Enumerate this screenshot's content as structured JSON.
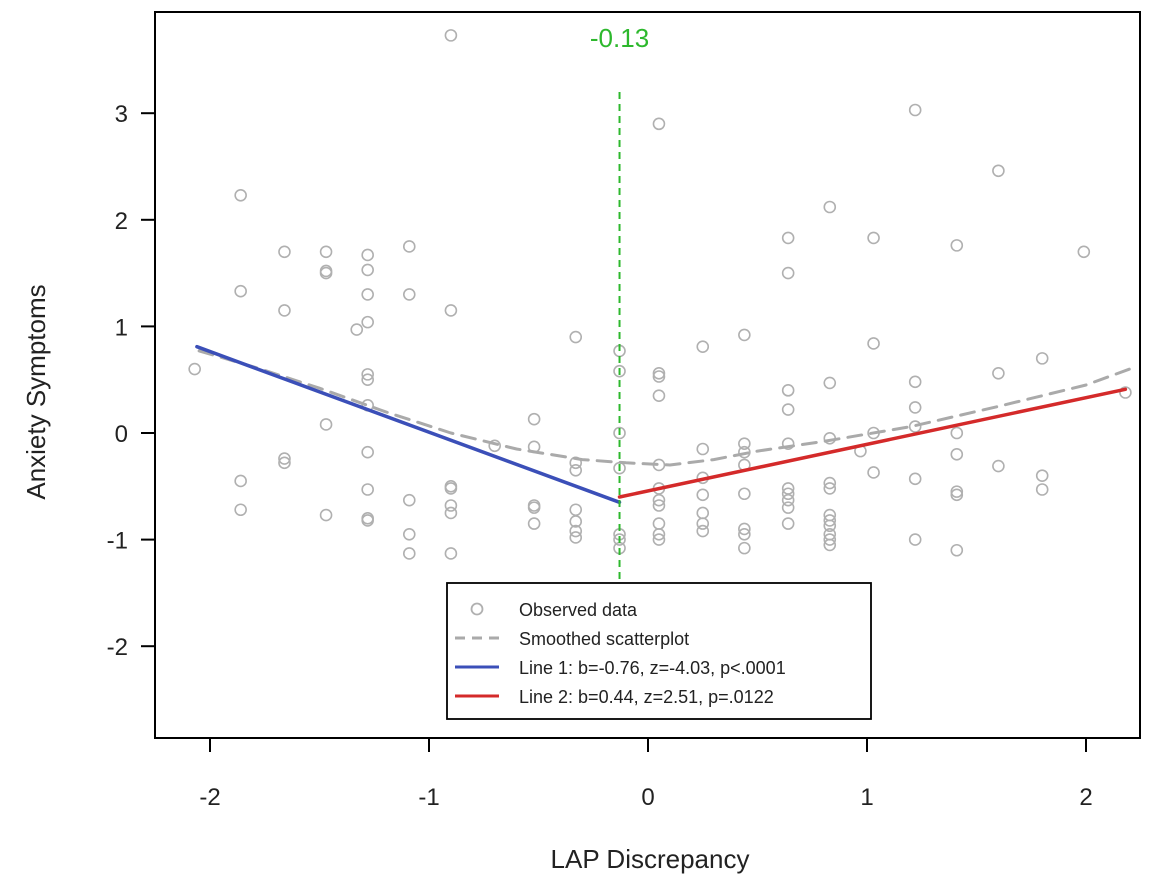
{
  "chart_data": {
    "type": "scatter",
    "xlabel": "LAP Discrepancy",
    "ylabel": "Anxiety Symptoms",
    "xlim": [
      -2.2,
      2.3
    ],
    "ylim": [
      -2.8,
      3.9
    ],
    "x_ticks": [
      -2,
      -1,
      0,
      1,
      2
    ],
    "y_ticks": [
      -2,
      -1,
      0,
      1,
      2,
      3
    ],
    "grid": false,
    "legend_position": "bottom-center",
    "annotation": {
      "text": "-0.13",
      "x": -0.13,
      "color": "#2db82d"
    },
    "series": [
      {
        "name": "Observed data",
        "kind": "points",
        "color": "#b0b0b0",
        "points": [
          [
            -2.07,
            0.6
          ],
          [
            -1.86,
            2.23
          ],
          [
            -1.86,
            1.33
          ],
          [
            -1.86,
            -0.45
          ],
          [
            -1.86,
            -0.72
          ],
          [
            -1.66,
            1.7
          ],
          [
            -1.66,
            1.15
          ],
          [
            -1.66,
            -0.24
          ],
          [
            -1.66,
            -0.28
          ],
          [
            -1.47,
            1.7
          ],
          [
            -1.47,
            1.52
          ],
          [
            -1.47,
            1.5
          ],
          [
            -1.47,
            0.08
          ],
          [
            -1.47,
            -0.77
          ],
          [
            -1.33,
            0.97
          ],
          [
            -1.28,
            1.67
          ],
          [
            -1.28,
            1.53
          ],
          [
            -1.28,
            1.3
          ],
          [
            -1.28,
            1.04
          ],
          [
            -1.28,
            0.55
          ],
          [
            -1.28,
            0.5
          ],
          [
            -1.28,
            0.26
          ],
          [
            -1.28,
            -0.18
          ],
          [
            -1.28,
            -0.53
          ],
          [
            -1.28,
            -0.8
          ],
          [
            -1.28,
            -0.82
          ],
          [
            -1.09,
            1.75
          ],
          [
            -1.09,
            1.3
          ],
          [
            -1.09,
            -0.63
          ],
          [
            -1.09,
            -0.95
          ],
          [
            -1.09,
            -1.13
          ],
          [
            -0.9,
            3.73
          ],
          [
            -0.9,
            1.15
          ],
          [
            -0.9,
            -0.5
          ],
          [
            -0.9,
            -0.52
          ],
          [
            -0.9,
            -0.68
          ],
          [
            -0.9,
            -0.75
          ],
          [
            -0.9,
            -1.13
          ],
          [
            -0.7,
            -0.12
          ],
          [
            -0.52,
            0.13
          ],
          [
            -0.52,
            -0.13
          ],
          [
            -0.52,
            -0.68
          ],
          [
            -0.52,
            -0.7
          ],
          [
            -0.52,
            -0.85
          ],
          [
            -0.33,
            0.9
          ],
          [
            -0.33,
            -0.28
          ],
          [
            -0.33,
            -0.35
          ],
          [
            -0.33,
            -0.72
          ],
          [
            -0.33,
            -0.83
          ],
          [
            -0.33,
            -0.92
          ],
          [
            -0.33,
            -0.98
          ],
          [
            -0.13,
            0.77
          ],
          [
            -0.13,
            0.58
          ],
          [
            -0.13,
            0.0
          ],
          [
            -0.13,
            -0.33
          ],
          [
            -0.13,
            -0.95
          ],
          [
            -0.13,
            -1.0
          ],
          [
            -0.13,
            -1.08
          ],
          [
            0.05,
            2.9
          ],
          [
            0.05,
            0.56
          ],
          [
            0.05,
            0.53
          ],
          [
            0.05,
            0.35
          ],
          [
            0.05,
            -0.3
          ],
          [
            0.05,
            -0.52
          ],
          [
            0.05,
            -0.63
          ],
          [
            0.05,
            -0.68
          ],
          [
            0.05,
            -0.85
          ],
          [
            0.05,
            -0.95
          ],
          [
            0.05,
            -1.0
          ],
          [
            0.25,
            0.81
          ],
          [
            0.25,
            -0.15
          ],
          [
            0.25,
            -0.42
          ],
          [
            0.25,
            -0.58
          ],
          [
            0.25,
            -0.75
          ],
          [
            0.25,
            -0.85
          ],
          [
            0.25,
            -0.92
          ],
          [
            0.44,
            0.92
          ],
          [
            0.44,
            -0.1
          ],
          [
            0.44,
            -0.18
          ],
          [
            0.44,
            -0.3
          ],
          [
            0.44,
            -0.57
          ],
          [
            0.44,
            -0.9
          ],
          [
            0.44,
            -0.95
          ],
          [
            0.44,
            -1.08
          ],
          [
            0.64,
            1.83
          ],
          [
            0.64,
            1.5
          ],
          [
            0.64,
            0.4
          ],
          [
            0.64,
            0.22
          ],
          [
            0.64,
            -0.1
          ],
          [
            0.64,
            -0.52
          ],
          [
            0.64,
            -0.57
          ],
          [
            0.64,
            -0.63
          ],
          [
            0.64,
            -0.7
          ],
          [
            0.64,
            -0.85
          ],
          [
            0.83,
            2.12
          ],
          [
            0.83,
            0.47
          ],
          [
            0.83,
            -0.05
          ],
          [
            0.83,
            -0.47
          ],
          [
            0.83,
            -0.52
          ],
          [
            0.83,
            -0.77
          ],
          [
            0.83,
            -0.82
          ],
          [
            0.83,
            -0.87
          ],
          [
            0.83,
            -0.95
          ],
          [
            0.83,
            -1.0
          ],
          [
            0.83,
            -1.05
          ],
          [
            0.97,
            -0.17
          ],
          [
            1.03,
            1.83
          ],
          [
            1.03,
            0.84
          ],
          [
            1.03,
            0.0
          ],
          [
            1.03,
            -0.37
          ],
          [
            1.22,
            3.03
          ],
          [
            1.22,
            0.48
          ],
          [
            1.22,
            0.24
          ],
          [
            1.22,
            0.06
          ],
          [
            1.22,
            -0.43
          ],
          [
            1.22,
            -1.0
          ],
          [
            1.41,
            1.76
          ],
          [
            1.41,
            0.0
          ],
          [
            1.41,
            -0.2
          ],
          [
            1.41,
            -0.55
          ],
          [
            1.41,
            -0.58
          ],
          [
            1.41,
            -1.1
          ],
          [
            1.6,
            2.46
          ],
          [
            1.6,
            0.56
          ],
          [
            1.6,
            -0.31
          ],
          [
            1.8,
            0.7
          ],
          [
            1.8,
            -0.4
          ],
          [
            1.8,
            -0.53
          ],
          [
            1.99,
            1.7
          ],
          [
            2.18,
            0.38
          ]
        ]
      },
      {
        "name": "Smoothed scatterplot",
        "kind": "line",
        "dash": "dashed",
        "color": "#aaaaaa",
        "points": [
          [
            -2.05,
            0.77
          ],
          [
            -1.8,
            0.62
          ],
          [
            -1.5,
            0.42
          ],
          [
            -1.2,
            0.2
          ],
          [
            -0.9,
            0.0
          ],
          [
            -0.6,
            -0.15
          ],
          [
            -0.3,
            -0.25
          ],
          [
            -0.1,
            -0.28
          ],
          [
            0.1,
            -0.3
          ],
          [
            0.3,
            -0.25
          ],
          [
            0.5,
            -0.17
          ],
          [
            0.8,
            -0.08
          ],
          [
            1.2,
            0.06
          ],
          [
            1.6,
            0.25
          ],
          [
            2.0,
            0.45
          ],
          [
            2.2,
            0.6
          ]
        ]
      },
      {
        "name": "Line 1: b=-0.76, z=-4.03, p<.0001",
        "kind": "line",
        "color": "#3b4fb8",
        "points": [
          [
            -2.06,
            0.81
          ],
          [
            -0.13,
            -0.65
          ]
        ]
      },
      {
        "name": "Line 2: b=0.44, z=2.51, p=.0122",
        "kind": "line",
        "color": "#d42a2a",
        "points": [
          [
            -0.13,
            -0.6
          ],
          [
            2.18,
            0.41
          ]
        ]
      }
    ]
  }
}
